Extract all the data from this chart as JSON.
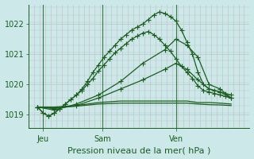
{
  "background_color": "#cce8e8",
  "grid_color_v": "#c8b8c8",
  "grid_color_h": "#b8c8c8",
  "line_color": "#1a5e20",
  "title": "Pression niveau de la mer( hPa )",
  "label_jeu": "Jeu",
  "label_sam": "Sam",
  "label_ven": "Ven",
  "ylim": [
    1018.55,
    1022.65
  ],
  "yticks": [
    1019,
    1020,
    1021,
    1022
  ],
  "xlim": [
    0,
    120
  ],
  "x_jeu": 8,
  "x_sam": 40,
  "x_ven": 80,
  "series": [
    {
      "x": [
        5,
        8,
        11,
        14,
        17,
        20,
        23,
        26,
        29,
        32,
        35,
        38,
        41,
        44,
        47,
        50,
        53,
        56,
        59,
        62,
        65,
        68,
        71,
        74,
        77,
        80,
        83,
        86,
        89,
        92,
        95,
        98,
        101,
        104,
        107,
        110
      ],
      "y": [
        1019.25,
        1019.05,
        1018.95,
        1019.05,
        1019.2,
        1019.35,
        1019.5,
        1019.65,
        1019.85,
        1020.1,
        1020.4,
        1020.65,
        1020.9,
        1021.1,
        1021.3,
        1021.5,
        1021.65,
        1021.8,
        1021.9,
        1022.0,
        1022.15,
        1022.3,
        1022.4,
        1022.35,
        1022.25,
        1022.1,
        1021.8,
        1021.4,
        1021.0,
        1020.4,
        1020.0,
        1019.85,
        1019.8,
        1019.75,
        1019.7,
        1019.65
      ],
      "markers": true
    },
    {
      "x": [
        5,
        8,
        11,
        14,
        17,
        20,
        23,
        26,
        29,
        32,
        35,
        38,
        41,
        44,
        47,
        50,
        53,
        56,
        59,
        62,
        65,
        68,
        71,
        74,
        77,
        80,
        83,
        86,
        89,
        92,
        95,
        98,
        101,
        104,
        107,
        110
      ],
      "y": [
        1019.25,
        1019.05,
        1018.95,
        1019.05,
        1019.2,
        1019.35,
        1019.5,
        1019.65,
        1019.8,
        1020.0,
        1020.2,
        1020.45,
        1020.65,
        1020.85,
        1021.05,
        1021.2,
        1021.35,
        1021.5,
        1021.6,
        1021.7,
        1021.75,
        1021.65,
        1021.5,
        1021.3,
        1021.1,
        1020.85,
        1020.6,
        1020.4,
        1020.2,
        1019.95,
        1019.8,
        1019.75,
        1019.7,
        1019.65,
        1019.6,
        1019.55
      ],
      "markers": true
    },
    {
      "x": [
        5,
        14,
        26,
        38,
        50,
        62,
        74,
        80,
        86,
        92,
        98,
        104,
        110
      ],
      "y": [
        1019.25,
        1019.15,
        1019.35,
        1019.65,
        1020.1,
        1020.7,
        1021.15,
        1021.5,
        1021.3,
        1020.9,
        1020.0,
        1019.85,
        1019.55
      ],
      "markers": true
    },
    {
      "x": [
        5,
        14,
        26,
        38,
        50,
        62,
        74,
        80,
        86,
        92,
        98,
        104,
        110
      ],
      "y": [
        1019.25,
        1019.2,
        1019.3,
        1019.55,
        1019.85,
        1020.15,
        1020.5,
        1020.7,
        1020.5,
        1020.15,
        1019.85,
        1019.75,
        1019.55
      ],
      "markers": true
    },
    {
      "x": [
        5,
        14,
        26,
        38,
        50,
        62,
        74,
        80,
        86,
        92,
        98,
        104,
        110
      ],
      "y": [
        1019.25,
        1019.25,
        1019.3,
        1019.4,
        1019.45,
        1019.45,
        1019.45,
        1019.45,
        1019.45,
        1019.4,
        1019.4,
        1019.38,
        1019.35
      ],
      "markers": false
    },
    {
      "x": [
        5,
        14,
        26,
        38,
        50,
        62,
        74,
        80,
        86,
        92,
        98,
        104,
        110
      ],
      "y": [
        1019.25,
        1019.22,
        1019.28,
        1019.35,
        1019.38,
        1019.38,
        1019.38,
        1019.38,
        1019.38,
        1019.35,
        1019.33,
        1019.32,
        1019.3
      ],
      "markers": false
    }
  ],
  "marker_size": 3.0,
  "line_width": 0.9,
  "title_fontsize": 8,
  "tick_fontsize": 7
}
